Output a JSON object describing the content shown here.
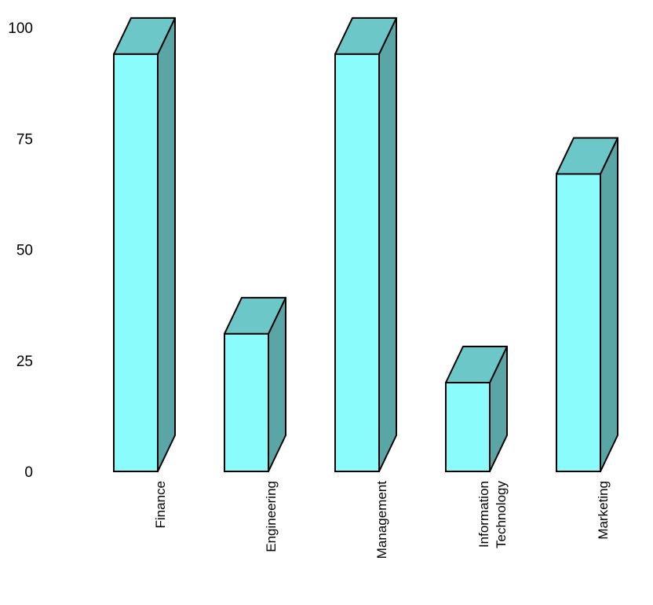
{
  "chart_data": {
    "type": "bar",
    "title": "",
    "xlabel": "",
    "ylabel": "",
    "ylim": [
      0,
      100
    ],
    "yticks": [
      0,
      25,
      50,
      75,
      100
    ],
    "grid": false,
    "style": "3d",
    "categories": [
      [
        "Finance"
      ],
      [
        "Engineering"
      ],
      [
        "Management"
      ],
      [
        "Information",
        "Technology"
      ],
      [
        "Marketing"
      ]
    ],
    "values": [
      94,
      31,
      94,
      20,
      67
    ],
    "colors": {
      "front": "#8afcfc",
      "top": "#6cc8c8",
      "side": "#5aa6a6",
      "outline": "#000000"
    }
  }
}
